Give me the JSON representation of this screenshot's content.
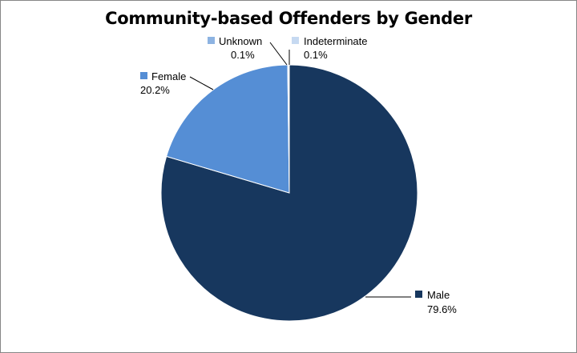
{
  "chart_data": {
    "type": "pie",
    "title": "Community-based Offenders by Gender",
    "slices": [
      {
        "name": "Male",
        "value": 79.6,
        "label": "79.6%",
        "color": "#17375e"
      },
      {
        "name": "Female",
        "value": 20.2,
        "label": "20.2%",
        "color": "#558ed5"
      },
      {
        "name": "Unknown",
        "value": 0.1,
        "label": "0.1%",
        "color": "#8db3e2"
      },
      {
        "name": "Indeterminate",
        "value": 0.1,
        "label": "0.1%",
        "color": "#c6d9f1"
      }
    ],
    "start_angle_deg": 0,
    "direction": "clockwise",
    "legend": "none",
    "data_labels": "outside-with-leader-lines"
  }
}
